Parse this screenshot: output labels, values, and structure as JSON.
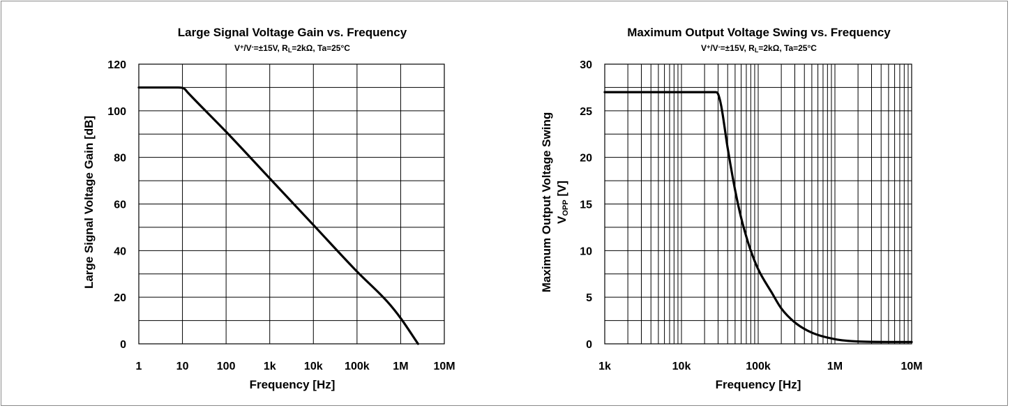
{
  "chart_data": [
    {
      "type": "line",
      "title": "Large Signal Voltage Gain vs. Frequency",
      "subtitle": {
        "parts": [
          "V",
          "+",
          "/V",
          "-",
          "=±15V, R",
          "L",
          "=2kΩ, Ta=25°C"
        ]
      },
      "xlabel": "Frequency [Hz]",
      "ylabel": "Large Signal Voltage Gain [dB]",
      "x_scale": "log",
      "xlim": [
        1,
        10000000
      ],
      "ylim": [
        0,
        120
      ],
      "x_ticks": [
        {
          "value": 1,
          "label": "1"
        },
        {
          "value": 10,
          "label": "10"
        },
        {
          "value": 100,
          "label": "100"
        },
        {
          "value": 1000,
          "label": "1k"
        },
        {
          "value": 10000,
          "label": "10k"
        },
        {
          "value": 100000,
          "label": "100k"
        },
        {
          "value": 1000000,
          "label": "1M"
        },
        {
          "value": 10000000,
          "label": "10M"
        }
      ],
      "y_ticks": [
        {
          "value": 0,
          "label": "0"
        },
        {
          "value": 20,
          "label": "20"
        },
        {
          "value": 40,
          "label": "40"
        },
        {
          "value": 60,
          "label": "60"
        },
        {
          "value": 80,
          "label": "80"
        },
        {
          "value": 100,
          "label": "100"
        },
        {
          "value": 120,
          "label": "120"
        }
      ],
      "y_grid_step": 10,
      "x_minor_grid": false,
      "grid": true,
      "series": [
        {
          "x": [
            1,
            8,
            11,
            13,
            100,
            1000,
            10000,
            100000,
            500000,
            1000000,
            2500000
          ],
          "y": [
            110,
            110,
            109.5,
            108,
            91,
            71,
            51,
            31,
            18,
            11,
            0
          ]
        }
      ]
    },
    {
      "type": "line",
      "title": "Maximum Output Voltage Swing vs. Frequency",
      "subtitle": {
        "parts": [
          "V",
          "+",
          "/V",
          "-",
          "=±15V, R",
          "L",
          "=2kΩ, Ta=25°C"
        ]
      },
      "xlabel": "Frequency [Hz]",
      "ylabel": {
        "line1": "Maximum Output Voltage Swing",
        "line2_parts": [
          "V",
          "OPP",
          " [V]"
        ]
      },
      "x_scale": "log",
      "xlim": [
        1000,
        10000000
      ],
      "ylim": [
        0,
        30
      ],
      "x_ticks": [
        {
          "value": 1000,
          "label": "1k"
        },
        {
          "value": 10000,
          "label": "10k"
        },
        {
          "value": 100000,
          "label": "100k"
        },
        {
          "value": 1000000,
          "label": "1M"
        },
        {
          "value": 10000000,
          "label": "10M"
        }
      ],
      "y_ticks": [
        {
          "value": 0,
          "label": "0"
        },
        {
          "value": 5,
          "label": "5"
        },
        {
          "value": 10,
          "label": "10"
        },
        {
          "value": 15,
          "label": "15"
        },
        {
          "value": 20,
          "label": "20"
        },
        {
          "value": 25,
          "label": "25"
        },
        {
          "value": 30,
          "label": "30"
        }
      ],
      "y_grid_step": 2.5,
      "x_minor_grid": true,
      "grid": true,
      "series": [
        {
          "x": [
            1000,
            10000,
            25000,
            28000,
            30000,
            33000,
            40000,
            50000,
            60000,
            70000,
            80000,
            100000,
            150000,
            200000,
            300000,
            500000,
            1000000,
            2000000,
            5000000,
            10000000
          ],
          "y": [
            27,
            27,
            27,
            27,
            26.8,
            25.5,
            21,
            16.5,
            13.5,
            11.5,
            10,
            8,
            5.5,
            3.8,
            2.3,
            1.2,
            0.5,
            0.25,
            0.2,
            0.2
          ]
        }
      ]
    }
  ]
}
